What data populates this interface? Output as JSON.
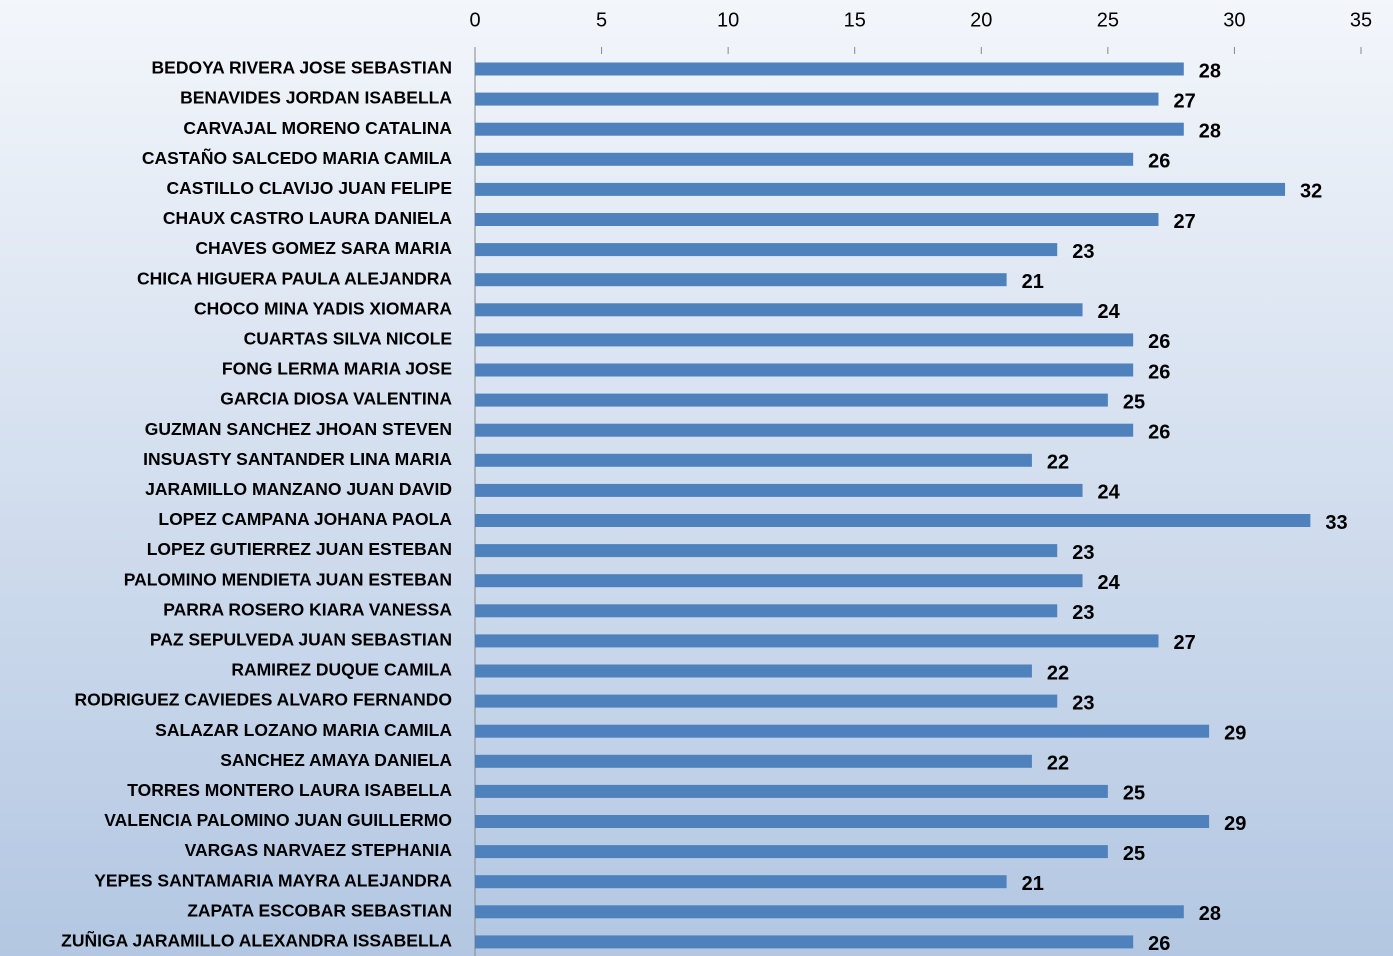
{
  "chart_data": {
    "type": "barh",
    "categories": [
      "BEDOYA RIVERA JOSE SEBASTIAN",
      "BENAVIDES JORDAN ISABELLA",
      "CARVAJAL MORENO CATALINA",
      "CASTAÑO SALCEDO MARIA CAMILA",
      "CASTILLO CLAVIJO JUAN FELIPE",
      "CHAUX CASTRO LAURA DANIELA",
      "CHAVES GOMEZ SARA MARIA",
      "CHICA HIGUERA PAULA ALEJANDRA",
      "CHOCO MINA YADIS XIOMARA",
      "CUARTAS SILVA NICOLE",
      "FONG LERMA MARIA JOSE",
      "GARCIA DIOSA VALENTINA",
      "GUZMAN SANCHEZ JHOAN STEVEN",
      "INSUASTY SANTANDER LINA MARIA",
      "JARAMILLO MANZANO JUAN DAVID",
      "LOPEZ CAMPANA JOHANA PAOLA",
      "LOPEZ GUTIERREZ JUAN ESTEBAN",
      "PALOMINO MENDIETA JUAN ESTEBAN",
      "PARRA ROSERO KIARA VANESSA",
      "PAZ SEPULVEDA JUAN SEBASTIAN",
      "RAMIREZ DUQUE CAMILA",
      "RODRIGUEZ CAVIEDES ALVARO FERNANDO",
      "SALAZAR LOZANO MARIA CAMILA",
      "SANCHEZ AMAYA DANIELA",
      "TORRES MONTERO LAURA ISABELLA",
      "VALENCIA PALOMINO JUAN GUILLERMO",
      "VARGAS NARVAEZ STEPHANIA",
      "YEPES SANTAMARIA MAYRA ALEJANDRA",
      "ZAPATA ESCOBAR SEBASTIAN",
      "ZUÑIGA JARAMILLO ALEXANDRA ISSABELLA"
    ],
    "values": [
      28,
      27,
      28,
      26,
      32,
      27,
      23,
      21,
      24,
      26,
      26,
      25,
      26,
      22,
      24,
      33,
      23,
      24,
      23,
      27,
      22,
      23,
      29,
      22,
      25,
      29,
      25,
      21,
      28,
      26
    ],
    "color": "#4f81bd",
    "xlim": [
      0,
      35
    ],
    "xticks": [
      0,
      5,
      10,
      15,
      20,
      25,
      30,
      35
    ],
    "grid": false
  }
}
